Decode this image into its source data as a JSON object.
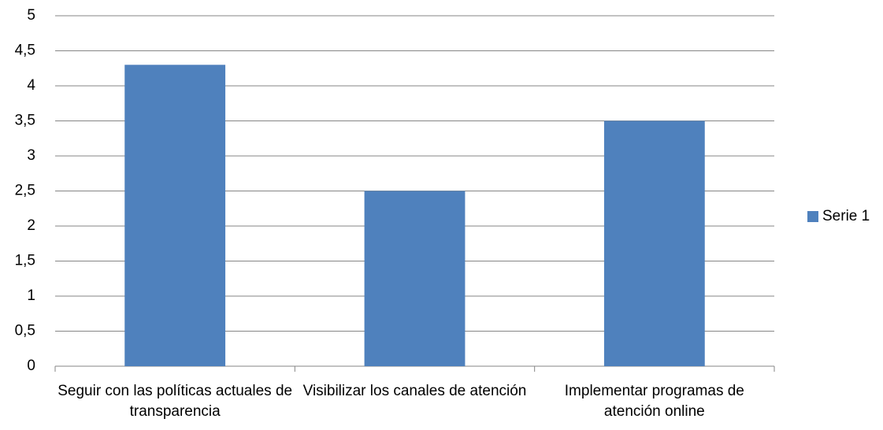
{
  "chart_data": {
    "type": "bar",
    "categories": [
      "Seguir con las políticas actuales de transparencia",
      "Visibilizar los canales de atención",
      "Implementar programas de atención online"
    ],
    "series": [
      {
        "name": "Serie 1",
        "color": "#4f81bd",
        "values": [
          4.3,
          2.5,
          3.5
        ]
      }
    ],
    "ylim": [
      0,
      5
    ],
    "yticks": [
      0,
      {
        "value": 0.5,
        "label": "0,5"
      },
      1,
      {
        "value": 1.5,
        "label": "1,5"
      },
      2,
      {
        "value": 2.5,
        "label": "2,5"
      },
      3,
      {
        "value": 3.5,
        "label": "3,5"
      },
      4,
      {
        "value": 4.5,
        "label": "4,5"
      },
      5
    ],
    "grid": true,
    "legend": "right"
  }
}
